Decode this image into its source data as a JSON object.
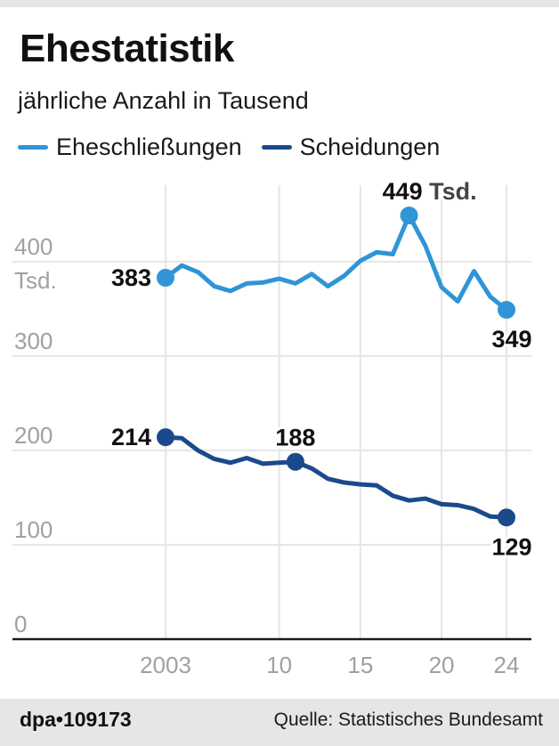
{
  "header": {
    "title": "Ehestatistik",
    "subtitle": "jährliche Anzahl in Tausend"
  },
  "footer": {
    "agency_id": "dpa•109173",
    "source": "Quelle: Statistisches Bundesamt"
  },
  "chart_data": {
    "type": "line",
    "title": "Ehestatistik",
    "subtitle": "jährliche Anzahl in Tausend",
    "xlabel": "",
    "ylabel": "Tsd.",
    "x": [
      2003,
      2004,
      2005,
      2006,
      2007,
      2008,
      2009,
      2010,
      2011,
      2012,
      2013,
      2014,
      2015,
      2016,
      2017,
      2018,
      2019,
      2020,
      2021,
      2022,
      2023,
      2024
    ],
    "xlim": [
      2003,
      2024
    ],
    "ylim": [
      0,
      440
    ],
    "x_ticks": [
      {
        "value": 2003,
        "label": "2003"
      },
      {
        "value": 2010,
        "label": "10"
      },
      {
        "value": 2015,
        "label": "15"
      },
      {
        "value": 2020,
        "label": "20"
      },
      {
        "value": 2024,
        "label": "24"
      }
    ],
    "y_ticks": [
      {
        "value": 0,
        "label": "0"
      },
      {
        "value": 100,
        "label": "100"
      },
      {
        "value": 200,
        "label": "200"
      },
      {
        "value": 300,
        "label": "300"
      },
      {
        "value": 400,
        "label": "400",
        "unit": "Tsd."
      }
    ],
    "grid": true,
    "legend_position": "top-left",
    "series": [
      {
        "name": "Eheschließungen",
        "color": "#2f95d6",
        "values": [
          383,
          396,
          389,
          374,
          369,
          377,
          378,
          382,
          377,
          387,
          374,
          385,
          401,
          410,
          408,
          449,
          417,
          373,
          358,
          390,
          363,
          349
        ]
      },
      {
        "name": "Scheidungen",
        "color": "#1b4a8c",
        "values": [
          214,
          213,
          200,
          191,
          187,
          192,
          186,
          187,
          188,
          181,
          170,
          166,
          164,
          163,
          152,
          147,
          149,
          143,
          142,
          138,
          130,
          129
        ]
      }
    ],
    "annotations": [
      {
        "series": 0,
        "x": 2003,
        "label": "383",
        "position": "left"
      },
      {
        "series": 0,
        "x": 2018,
        "label": "449",
        "unit": "Tsd.",
        "position": "above"
      },
      {
        "series": 0,
        "x": 2024,
        "label": "349",
        "position": "below"
      },
      {
        "series": 1,
        "x": 2003,
        "label": "214",
        "position": "left"
      },
      {
        "series": 1,
        "x": 2011,
        "label": "188",
        "position": "above"
      },
      {
        "series": 1,
        "x": 2024,
        "label": "129",
        "position": "below"
      }
    ]
  }
}
